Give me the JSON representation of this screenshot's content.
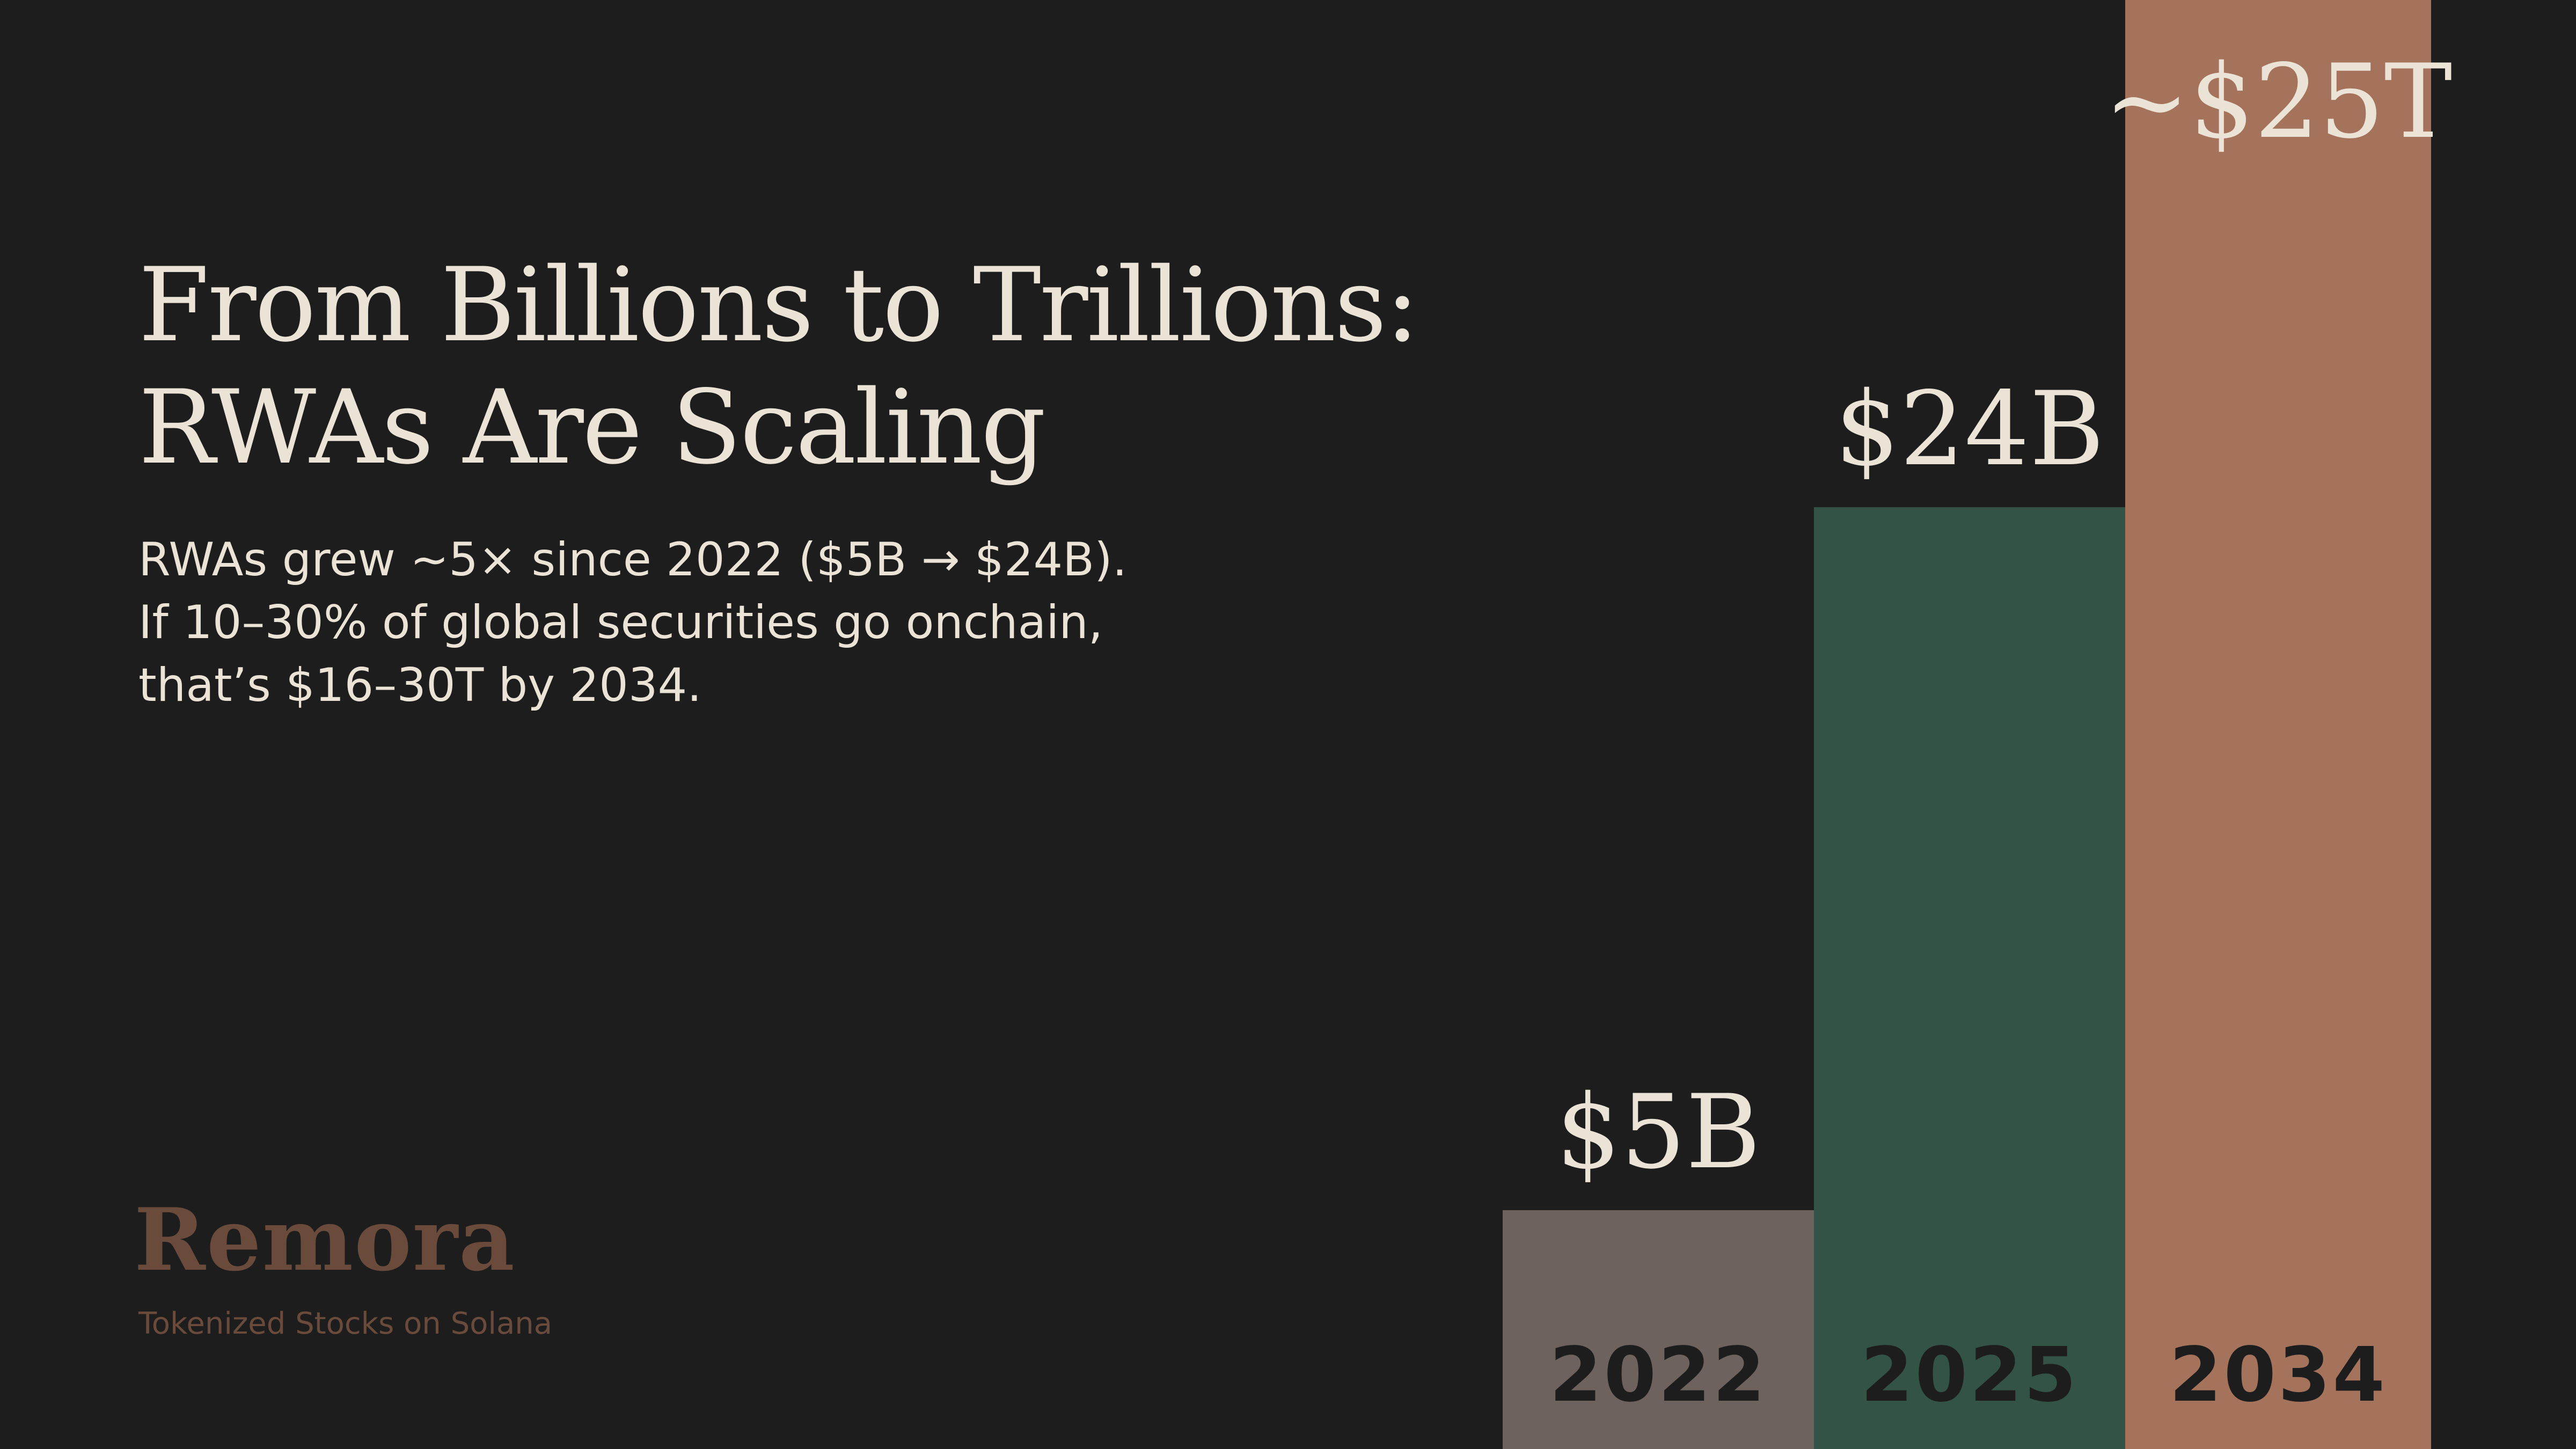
{
  "headline": {
    "line1": "From Billions to Trillions:",
    "line2": "RWAs Are Scaling"
  },
  "subtext": {
    "line1": "RWAs grew ~5× since 2022 ($5B → $24B).",
    "line2": "If 10–30% of global securities go onchain,",
    "line3": "that’s $16–30T by 2034."
  },
  "brand": {
    "logo": "Remora",
    "tagline": "Tokenized Stocks on Solana"
  },
  "colors": {
    "background": "#1d1d1d",
    "text": "#ebe3d6",
    "brand": "#6a4a3b"
  },
  "chart_data": {
    "type": "bar",
    "categories": [
      "2022",
      "2025",
      "2034"
    ],
    "value_labels": [
      "$5B",
      "$24B",
      "~$25T"
    ],
    "bar_colors": [
      "#6d625e",
      "#325346",
      "#a5735b"
    ],
    "values": [
      5,
      24,
      25000
    ],
    "units": "USD billions",
    "title": "",
    "xlabel": "",
    "ylabel": "",
    "grid": false,
    "legend": "none"
  }
}
